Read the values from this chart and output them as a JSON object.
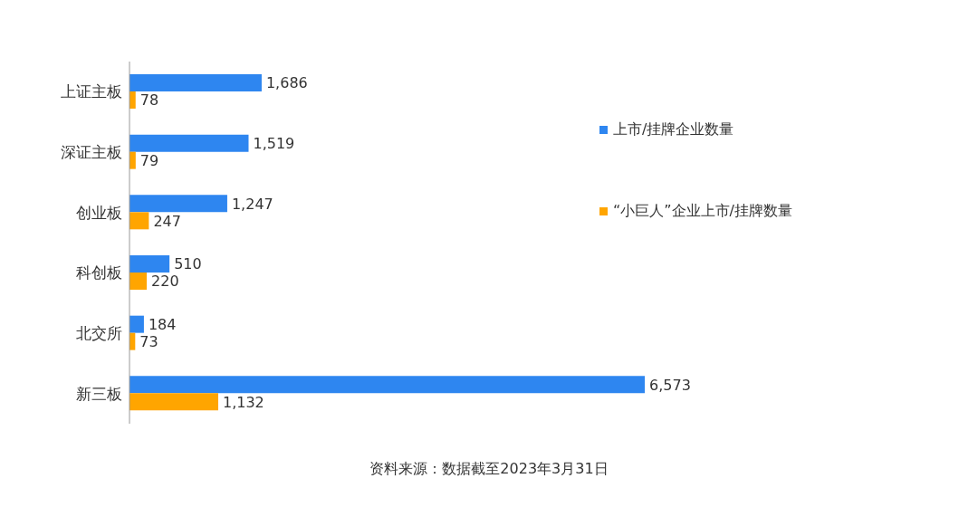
{
  "chart_data": {
    "type": "bar",
    "orientation": "horizontal",
    "categories": [
      "上证主板",
      "深证主板",
      "创业板",
      "科创板",
      "北交所",
      "新三板"
    ],
    "series": [
      {
        "name": "上市/挂牌企业数量",
        "color": "#2e86f0",
        "values": [
          1686,
          1519,
          1247,
          510,
          184,
          6573
        ],
        "value_labels": [
          "1,686",
          "1,519",
          "1,247",
          "510",
          "184",
          "6,573"
        ]
      },
      {
        "name": "“小巨人”企业上市/挂牌数量",
        "color": "#ffa500",
        "values": [
          78,
          79,
          247,
          220,
          73,
          1132
        ],
        "value_labels": [
          "78",
          "79",
          "247",
          "220",
          "73",
          "1,132"
        ]
      }
    ],
    "legend": "top right",
    "grid": false,
    "tick_labels": "y",
    "annotations": [
      "资料来源：数据截至2023年3月31日"
    ]
  }
}
